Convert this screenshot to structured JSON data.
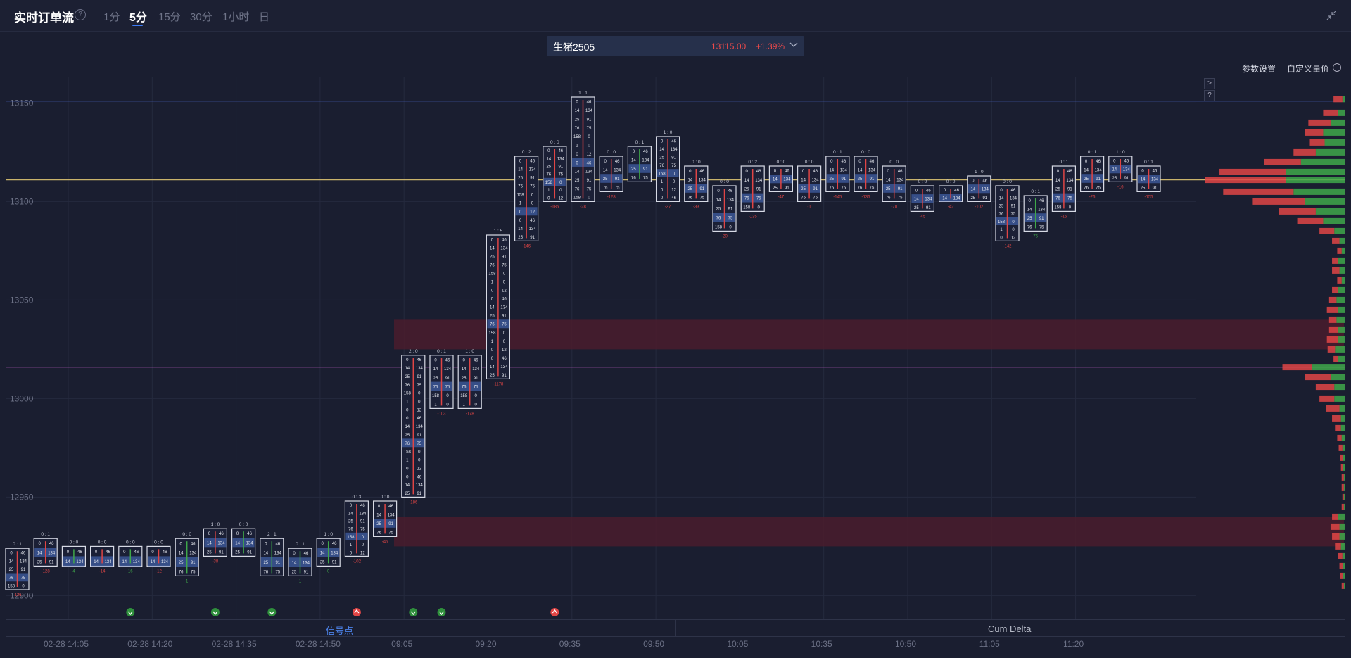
{
  "header": {
    "title": "实时订单流",
    "help_icon": "?",
    "timeframes": [
      "1分",
      "5分",
      "15分",
      "30分",
      "1小时",
      "日"
    ],
    "active_timeframe": "5分"
  },
  "instrument": {
    "name": "生猪2505",
    "price": "13115.00",
    "change": "+1.39%"
  },
  "toolbar": {
    "param_settings": "参数设置",
    "custom_volume_price": "自定义量价",
    "expand_btn": ">",
    "help_btn": "?"
  },
  "bottom_tabs": {
    "signals": "信号点",
    "cum_delta": "Cum Delta"
  },
  "colors": {
    "background": "#1a1e30",
    "bid": "#e04545",
    "ask": "#3fa84a",
    "highlight_zone": "#4a1c2d",
    "poc_line": "#c9b36b",
    "hline_blue": "#4a67c8",
    "hline_magenta": "#c260c9"
  },
  "chart_data": {
    "type": "footprint",
    "ylim": [
      12888,
      13163
    ],
    "y_ticks": [
      "13150",
      "13100",
      "13050",
      "13000",
      "12950",
      "12900"
    ],
    "y_tick_values": [
      13150,
      13100,
      13050,
      13000,
      12950,
      12900
    ],
    "x_tick_labels": [
      "02-28 14:05",
      "02-28 14:20",
      "02-28 14:35",
      "02-28 14:50",
      "09:05",
      "09:20",
      "09:35",
      "09:50",
      "10:05",
      "10:35",
      "10:50",
      "11:05",
      "11:20"
    ],
    "horizontal_lines": [
      {
        "name": "upper-blue-line",
        "value": 13151,
        "color": "#4a67c8"
      },
      {
        "name": "poc-line",
        "value": 13111,
        "color": "#c9b36b"
      },
      {
        "name": "magenta-line",
        "value": 13016,
        "color": "#c260c9"
      }
    ],
    "zones": [
      {
        "from": 13025,
        "to": 13040
      },
      {
        "from": 12925,
        "to": 12940
      }
    ],
    "bars": [
      {
        "ratio": "0 : 1",
        "lo": 12903,
        "hi": 12924,
        "d": "-136",
        "sig": ""
      },
      {
        "ratio": "0 : 1",
        "lo": 12915,
        "hi": 12929,
        "d": "-128",
        "sig": ""
      },
      {
        "ratio": "0 : 0",
        "lo": 12915,
        "hi": 12925,
        "d": "4",
        "sig": ""
      },
      {
        "ratio": "0 : 0",
        "lo": 12915,
        "hi": 12925,
        "d": "-14",
        "sig": ""
      },
      {
        "ratio": "0 : 0",
        "lo": 12915,
        "hi": 12925,
        "d": "16",
        "sig": "down"
      },
      {
        "ratio": "0 : 0",
        "lo": 12915,
        "hi": 12925,
        "d": "-12",
        "sig": ""
      },
      {
        "ratio": "0 : 0",
        "lo": 12910,
        "hi": 12929,
        "d": "1",
        "sig": ""
      },
      {
        "ratio": "1 : 0",
        "lo": 12920,
        "hi": 12934,
        "d": "-38",
        "sig": "down"
      },
      {
        "ratio": "0 : 0",
        "lo": 12920,
        "hi": 12934,
        "d": "",
        "sig": ""
      },
      {
        "ratio": "2 : 1",
        "lo": 12910,
        "hi": 12929,
        "d": "",
        "sig": "down"
      },
      {
        "ratio": "0 : 1",
        "lo": 12910,
        "hi": 12924,
        "d": "1",
        "sig": ""
      },
      {
        "ratio": "1 : 0",
        "lo": 12915,
        "hi": 12929,
        "d": "0",
        "sig": ""
      },
      {
        "ratio": "0 : 3",
        "lo": 12920,
        "hi": 12948,
        "d": "-102",
        "sig": "up"
      },
      {
        "ratio": "0 : 0",
        "lo": 12930,
        "hi": 12948,
        "d": "-45",
        "sig": ""
      },
      {
        "ratio": "2 : 0",
        "lo": 12950,
        "hi": 13022,
        "d": "-186",
        "sig": "down"
      },
      {
        "ratio": "0 : 1",
        "lo": 12995,
        "hi": 13022,
        "d": "-103",
        "sig": "down"
      },
      {
        "ratio": "1 : 0",
        "lo": 12995,
        "hi": 13022,
        "d": "-178",
        "sig": ""
      },
      {
        "ratio": "1 : 5",
        "lo": 13010,
        "hi": 13083,
        "d": "-1178",
        "sig": ""
      },
      {
        "ratio": "0 : 2",
        "lo": 13080,
        "hi": 13123,
        "d": "-146",
        "sig": ""
      },
      {
        "ratio": "0 : 0",
        "lo": 13100,
        "hi": 13128,
        "d": "-186",
        "sig": "up"
      },
      {
        "ratio": "1 : 1",
        "lo": 13100,
        "hi": 13153,
        "d": "-28",
        "sig": ""
      },
      {
        "ratio": "0 : 0",
        "lo": 13105,
        "hi": 13123,
        "d": "-128",
        "sig": ""
      },
      {
        "ratio": "0 : 1",
        "lo": 13110,
        "hi": 13128,
        "d": "",
        "sig": ""
      },
      {
        "ratio": "1 : 0",
        "lo": 13100,
        "hi": 13133,
        "d": "-37",
        "sig": ""
      },
      {
        "ratio": "0 : 0",
        "lo": 13100,
        "hi": 13118,
        "d": "-33",
        "sig": ""
      },
      {
        "ratio": "0 : 0",
        "lo": 13085,
        "hi": 13108,
        "d": "-20",
        "sig": ""
      },
      {
        "ratio": "0 : 2",
        "lo": 13095,
        "hi": 13118,
        "d": "-135",
        "sig": ""
      },
      {
        "ratio": "0 : 0",
        "lo": 13105,
        "hi": 13118,
        "d": "-47",
        "sig": ""
      },
      {
        "ratio": "0 : 0",
        "lo": 13100,
        "hi": 13118,
        "d": "-1",
        "sig": ""
      },
      {
        "ratio": "0 : 1",
        "lo": 13105,
        "hi": 13123,
        "d": "-145",
        "sig": ""
      },
      {
        "ratio": "0 : 0",
        "lo": 13105,
        "hi": 13123,
        "d": "-136",
        "sig": ""
      },
      {
        "ratio": "0 : 0",
        "lo": 13100,
        "hi": 13118,
        "d": "-70",
        "sig": ""
      },
      {
        "ratio": "0 : 0",
        "lo": 13095,
        "hi": 13108,
        "d": "-45",
        "sig": ""
      },
      {
        "ratio": "0 : 0",
        "lo": 13100,
        "hi": 13108,
        "d": "-42",
        "sig": ""
      },
      {
        "ratio": "1 : 0",
        "lo": 13100,
        "hi": 13113,
        "d": "-102",
        "sig": ""
      },
      {
        "ratio": "0 : 0",
        "lo": 13080,
        "hi": 13108,
        "d": "-142",
        "sig": ""
      },
      {
        "ratio": "0 : 1",
        "lo": 13085,
        "hi": 13103,
        "d": "76",
        "sig": ""
      },
      {
        "ratio": "0 : 1",
        "lo": 13095,
        "hi": 13118,
        "d": "-16",
        "sig": ""
      },
      {
        "ratio": "0 : 1",
        "lo": 13105,
        "hi": 13123,
        "d": "-26",
        "sig": ""
      },
      {
        "ratio": "1 : 0",
        "lo": 13110,
        "hi": 13123,
        "d": "-16",
        "sig": ""
      },
      {
        "ratio": "0 : 1",
        "lo": 13105,
        "hi": 13118,
        "d": "-155",
        "sig": ""
      }
    ],
    "profile": [
      {
        "p": 13152,
        "bid": 12,
        "ask": 4
      },
      {
        "p": 13145,
        "bid": 20,
        "ask": 10
      },
      {
        "p": 13140,
        "bid": 30,
        "ask": 20
      },
      {
        "p": 13135,
        "bid": 25,
        "ask": 30
      },
      {
        "p": 13130,
        "bid": 20,
        "ask": 28
      },
      {
        "p": 13125,
        "bid": 30,
        "ask": 40
      },
      {
        "p": 13120,
        "bid": 50,
        "ask": 60
      },
      {
        "p": 13115,
        "bid": 90,
        "ask": 80
      },
      {
        "p": 13111,
        "bid": 110,
        "ask": 80
      },
      {
        "p": 13105,
        "bid": 95,
        "ask": 70
      },
      {
        "p": 13100,
        "bid": 70,
        "ask": 55
      },
      {
        "p": 13095,
        "bid": 50,
        "ask": 40
      },
      {
        "p": 13090,
        "bid": 35,
        "ask": 30
      },
      {
        "p": 13085,
        "bid": 20,
        "ask": 15
      },
      {
        "p": 13080,
        "bid": 10,
        "ask": 8
      },
      {
        "p": 13075,
        "bid": 6,
        "ask": 5
      },
      {
        "p": 13070,
        "bid": 8,
        "ask": 10
      },
      {
        "p": 13065,
        "bid": 10,
        "ask": 8
      },
      {
        "p": 13060,
        "bid": 6,
        "ask": 5
      },
      {
        "p": 13055,
        "bid": 8,
        "ask": 10
      },
      {
        "p": 13050,
        "bid": 10,
        "ask": 12
      },
      {
        "p": 13045,
        "bid": 15,
        "ask": 10
      },
      {
        "p": 13040,
        "bid": 10,
        "ask": 12
      },
      {
        "p": 13035,
        "bid": 12,
        "ask": 10
      },
      {
        "p": 13030,
        "bid": 15,
        "ask": 10
      },
      {
        "p": 13025,
        "bid": 10,
        "ask": 14
      },
      {
        "p": 13020,
        "bid": 6,
        "ask": 10
      },
      {
        "p": 13016,
        "bid": 40,
        "ask": 45
      },
      {
        "p": 13011,
        "bid": 35,
        "ask": 20
      },
      {
        "p": 13006,
        "bid": 25,
        "ask": 15
      },
      {
        "p": 13000,
        "bid": 20,
        "ask": 15
      },
      {
        "p": 12995,
        "bid": 18,
        "ask": 8
      },
      {
        "p": 12990,
        "bid": 12,
        "ask": 6
      },
      {
        "p": 12985,
        "bid": 8,
        "ask": 6
      },
      {
        "p": 12980,
        "bid": 6,
        "ask": 5
      },
      {
        "p": 12975,
        "bid": 5,
        "ask": 4
      },
      {
        "p": 12970,
        "bid": 4,
        "ask": 3
      },
      {
        "p": 12965,
        "bid": 3,
        "ask": 3
      },
      {
        "p": 12960,
        "bid": 3,
        "ask": 2
      },
      {
        "p": 12955,
        "bid": 3,
        "ask": 2
      },
      {
        "p": 12950,
        "bid": 2,
        "ask": 2
      },
      {
        "p": 12945,
        "bid": 3,
        "ask": 2
      },
      {
        "p": 12940,
        "bid": 8,
        "ask": 10
      },
      {
        "p": 12935,
        "bid": 12,
        "ask": 8
      },
      {
        "p": 12930,
        "bid": 10,
        "ask": 8
      },
      {
        "p": 12925,
        "bid": 8,
        "ask": 6
      },
      {
        "p": 12920,
        "bid": 6,
        "ask": 4
      },
      {
        "p": 12915,
        "bid": 5,
        "ask": 3
      },
      {
        "p": 12910,
        "bid": 4,
        "ask": 3
      },
      {
        "p": 12905,
        "bid": 3,
        "ask": 2
      }
    ]
  }
}
